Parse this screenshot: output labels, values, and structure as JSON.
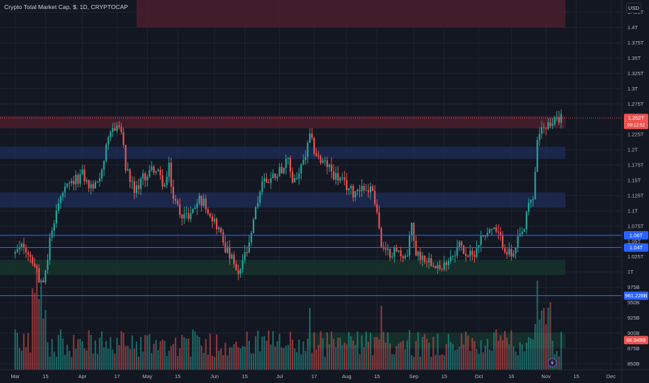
{
  "header": {
    "title": "Crypto Total Market Cap, $, 1D, CRYPTOCAP",
    "currency": "USD"
  },
  "colors": {
    "background": "#131722",
    "grid": "#1f2330",
    "up": "#26a69a",
    "down": "#ef5350",
    "supply_zone": "#4a1f2e",
    "demand_blue_zone": "#1c2a52",
    "demand_green_zone": "#16322c",
    "level_line": "#2962ff"
  },
  "chart_data": {
    "type": "candlestick",
    "title": "Crypto Total Market Cap, $, 1D, CRYPTOCAP",
    "y_axis_unit": "USD",
    "ylim": [
      0.84,
      1.445
    ],
    "y_ticks": [
      {
        "v": 1.425,
        "label": "1.425T"
      },
      {
        "v": 1.4,
        "label": "1.4T"
      },
      {
        "v": 1.375,
        "label": "1.375T"
      },
      {
        "v": 1.35,
        "label": "1.35T"
      },
      {
        "v": 1.325,
        "label": "1.325T"
      },
      {
        "v": 1.3,
        "label": "1.3T"
      },
      {
        "v": 1.275,
        "label": "1.275T"
      },
      {
        "v": 1.225,
        "label": "1.225T"
      },
      {
        "v": 1.2,
        "label": "1.2T"
      },
      {
        "v": 1.175,
        "label": "1.175T"
      },
      {
        "v": 1.15,
        "label": "1.15T"
      },
      {
        "v": 1.125,
        "label": "1.125T"
      },
      {
        "v": 1.1,
        "label": "1.1T"
      },
      {
        "v": 1.075,
        "label": "1.075T"
      },
      {
        "v": 1.05,
        "label": "1.05T"
      },
      {
        "v": 1.025,
        "label": "1.025T"
      },
      {
        "v": 1.0,
        "label": "1T"
      },
      {
        "v": 0.975,
        "label": "975B"
      },
      {
        "v": 0.95,
        "label": "950B"
      },
      {
        "v": 0.925,
        "label": "925B"
      },
      {
        "v": 0.9,
        "label": "900B"
      },
      {
        "v": 0.875,
        "label": "875B"
      },
      {
        "v": 0.85,
        "label": "850B"
      }
    ],
    "x_ticks": [
      {
        "day": 0,
        "label": "Mar"
      },
      {
        "day": 14,
        "label": "15"
      },
      {
        "day": 31,
        "label": "Apr"
      },
      {
        "day": 47,
        "label": "17"
      },
      {
        "day": 61,
        "label": "May"
      },
      {
        "day": 75,
        "label": "15"
      },
      {
        "day": 92,
        "label": "Jun"
      },
      {
        "day": 106,
        "label": "15"
      },
      {
        "day": 122,
        "label": "Jul"
      },
      {
        "day": 138,
        "label": "17"
      },
      {
        "day": 153,
        "label": "Aug"
      },
      {
        "day": 167,
        "label": "15"
      },
      {
        "day": 184,
        "label": "Sep"
      },
      {
        "day": 198,
        "label": "15"
      },
      {
        "day": 214,
        "label": "Oct"
      },
      {
        "day": 229,
        "label": "16"
      },
      {
        "day": 245,
        "label": "Nov"
      },
      {
        "day": 259,
        "label": "15"
      },
      {
        "day": 275,
        "label": "Dec"
      }
    ],
    "x_range": [
      -7,
      280
    ],
    "zones": [
      {
        "kind": "supply",
        "from": 1.4,
        "to": 1.445,
        "x_start_day": 56,
        "x_end_day": 254
      },
      {
        "kind": "supply",
        "from": 1.235,
        "to": 1.255,
        "x_start_day": -7,
        "x_end_day": 254
      },
      {
        "kind": "demand_blue",
        "from": 1.185,
        "to": 1.205,
        "x_start_day": -7,
        "x_end_day": 254
      },
      {
        "kind": "demand_blue",
        "from": 1.105,
        "to": 1.13,
        "x_start_day": -7,
        "x_end_day": 254
      },
      {
        "kind": "demand_green",
        "from": 0.995,
        "to": 1.02,
        "x_start_day": -7,
        "x_end_day": 254
      },
      {
        "kind": "demand_green",
        "from": 0.876,
        "to": 0.901,
        "x_start_day": 135,
        "x_end_day": 254
      }
    ],
    "levels": [
      {
        "value": 1.06,
        "label": "1.06T"
      },
      {
        "value": 1.04,
        "label": "1.04T"
      },
      {
        "value": 0.9612288,
        "label": "961.228B"
      }
    ],
    "last_price": {
      "value": 1.252,
      "label": "1.252T",
      "countdown": "09:12:52"
    },
    "volume_overlay": {
      "value": 0.8885,
      "label": "66.949B"
    },
    "close_path": [
      [
        0,
        1.03
      ],
      [
        4,
        1.045
      ],
      [
        8,
        1.02
      ],
      [
        11,
        0.99
      ],
      [
        13,
        0.975
      ],
      [
        16,
        1.05
      ],
      [
        19,
        1.1
      ],
      [
        22,
        1.13
      ],
      [
        25,
        1.14
      ],
      [
        28,
        1.15
      ],
      [
        31,
        1.16
      ],
      [
        34,
        1.14
      ],
      [
        37,
        1.14
      ],
      [
        40,
        1.17
      ],
      [
        42,
        1.2
      ],
      [
        45,
        1.235
      ],
      [
        47,
        1.24
      ],
      [
        49,
        1.23
      ],
      [
        51,
        1.17
      ],
      [
        53,
        1.15
      ],
      [
        55,
        1.13
      ],
      [
        58,
        1.15
      ],
      [
        61,
        1.16
      ],
      [
        64,
        1.17
      ],
      [
        66,
        1.16
      ],
      [
        69,
        1.14
      ],
      [
        71,
        1.17
      ],
      [
        73,
        1.12
      ],
      [
        76,
        1.1
      ],
      [
        79,
        1.09
      ],
      [
        82,
        1.1
      ],
      [
        85,
        1.12
      ],
      [
        88,
        1.11
      ],
      [
        91,
        1.09
      ],
      [
        94,
        1.07
      ],
      [
        97,
        1.04
      ],
      [
        100,
        1.02
      ],
      [
        103,
        0.99
      ],
      [
        105,
        1.02
      ],
      [
        108,
        1.04
      ],
      [
        111,
        1.1
      ],
      [
        114,
        1.15
      ],
      [
        117,
        1.15
      ],
      [
        120,
        1.16
      ],
      [
        123,
        1.17
      ],
      [
        126,
        1.18
      ],
      [
        128,
        1.15
      ],
      [
        131,
        1.16
      ],
      [
        134,
        1.19
      ],
      [
        136,
        1.22
      ],
      [
        138,
        1.2
      ],
      [
        141,
        1.18
      ],
      [
        144,
        1.175
      ],
      [
        147,
        1.16
      ],
      [
        150,
        1.15
      ],
      [
        153,
        1.14
      ],
      [
        156,
        1.13
      ],
      [
        159,
        1.14
      ],
      [
        162,
        1.135
      ],
      [
        165,
        1.135
      ],
      [
        167,
        1.1
      ],
      [
        169,
        1.04
      ],
      [
        171,
        1.03
      ],
      [
        175,
        1.035
      ],
      [
        178,
        1.03
      ],
      [
        181,
        1.025
      ],
      [
        183,
        1.08
      ],
      [
        185,
        1.03
      ],
      [
        188,
        1.025
      ],
      [
        191,
        1.02
      ],
      [
        194,
        1.015
      ],
      [
        197,
        1.0
      ],
      [
        199,
        1.02
      ],
      [
        202,
        1.03
      ],
      [
        205,
        1.045
      ],
      [
        208,
        1.03
      ],
      [
        211,
        1.025
      ],
      [
        214,
        1.05
      ],
      [
        217,
        1.065
      ],
      [
        220,
        1.07
      ],
      [
        223,
        1.06
      ],
      [
        226,
        1.04
      ],
      [
        228,
        1.03
      ],
      [
        230,
        1.025
      ],
      [
        232,
        1.05
      ],
      [
        235,
        1.07
      ],
      [
        237,
        1.11
      ],
      [
        239,
        1.12
      ],
      [
        241,
        1.21
      ],
      [
        243,
        1.24
      ],
      [
        245,
        1.235
      ],
      [
        248,
        1.24
      ],
      [
        250,
        1.255
      ],
      [
        252,
        1.252
      ]
    ]
  }
}
